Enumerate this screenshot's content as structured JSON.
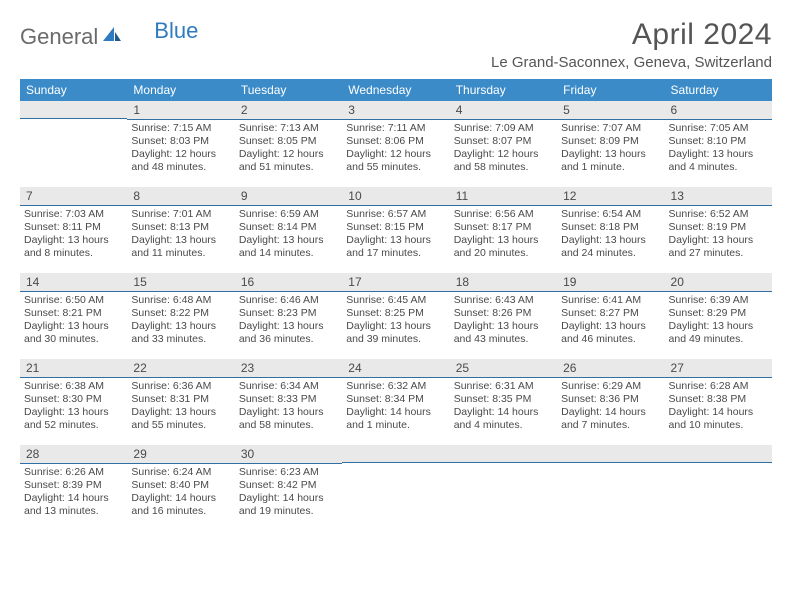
{
  "logo": {
    "text_a": "General",
    "text_b": "Blue"
  },
  "title": "April 2024",
  "location": "Le Grand-Saconnex, Geneva, Switzerland",
  "colors": {
    "header_bg": "#3b8bc9",
    "header_text": "#ffffff",
    "daynum_bg": "#e9e9e9",
    "daynum_border": "#2f6fa3",
    "body_text": "#4a4a4a",
    "logo_gray": "#6b6b6b",
    "logo_blue": "#2e7bbf",
    "page_bg": "#ffffff"
  },
  "day_names": [
    "Sunday",
    "Monday",
    "Tuesday",
    "Wednesday",
    "Thursday",
    "Friday",
    "Saturday"
  ],
  "weeks": [
    [
      {
        "n": "",
        "sr": "",
        "ss": "",
        "dl1": "",
        "dl2": ""
      },
      {
        "n": "1",
        "sr": "Sunrise: 7:15 AM",
        "ss": "Sunset: 8:03 PM",
        "dl1": "Daylight: 12 hours",
        "dl2": "and 48 minutes."
      },
      {
        "n": "2",
        "sr": "Sunrise: 7:13 AM",
        "ss": "Sunset: 8:05 PM",
        "dl1": "Daylight: 12 hours",
        "dl2": "and 51 minutes."
      },
      {
        "n": "3",
        "sr": "Sunrise: 7:11 AM",
        "ss": "Sunset: 8:06 PM",
        "dl1": "Daylight: 12 hours",
        "dl2": "and 55 minutes."
      },
      {
        "n": "4",
        "sr": "Sunrise: 7:09 AM",
        "ss": "Sunset: 8:07 PM",
        "dl1": "Daylight: 12 hours",
        "dl2": "and 58 minutes."
      },
      {
        "n": "5",
        "sr": "Sunrise: 7:07 AM",
        "ss": "Sunset: 8:09 PM",
        "dl1": "Daylight: 13 hours",
        "dl2": "and 1 minute."
      },
      {
        "n": "6",
        "sr": "Sunrise: 7:05 AM",
        "ss": "Sunset: 8:10 PM",
        "dl1": "Daylight: 13 hours",
        "dl2": "and 4 minutes."
      }
    ],
    [
      {
        "n": "7",
        "sr": "Sunrise: 7:03 AM",
        "ss": "Sunset: 8:11 PM",
        "dl1": "Daylight: 13 hours",
        "dl2": "and 8 minutes."
      },
      {
        "n": "8",
        "sr": "Sunrise: 7:01 AM",
        "ss": "Sunset: 8:13 PM",
        "dl1": "Daylight: 13 hours",
        "dl2": "and 11 minutes."
      },
      {
        "n": "9",
        "sr": "Sunrise: 6:59 AM",
        "ss": "Sunset: 8:14 PM",
        "dl1": "Daylight: 13 hours",
        "dl2": "and 14 minutes."
      },
      {
        "n": "10",
        "sr": "Sunrise: 6:57 AM",
        "ss": "Sunset: 8:15 PM",
        "dl1": "Daylight: 13 hours",
        "dl2": "and 17 minutes."
      },
      {
        "n": "11",
        "sr": "Sunrise: 6:56 AM",
        "ss": "Sunset: 8:17 PM",
        "dl1": "Daylight: 13 hours",
        "dl2": "and 20 minutes."
      },
      {
        "n": "12",
        "sr": "Sunrise: 6:54 AM",
        "ss": "Sunset: 8:18 PM",
        "dl1": "Daylight: 13 hours",
        "dl2": "and 24 minutes."
      },
      {
        "n": "13",
        "sr": "Sunrise: 6:52 AM",
        "ss": "Sunset: 8:19 PM",
        "dl1": "Daylight: 13 hours",
        "dl2": "and 27 minutes."
      }
    ],
    [
      {
        "n": "14",
        "sr": "Sunrise: 6:50 AM",
        "ss": "Sunset: 8:21 PM",
        "dl1": "Daylight: 13 hours",
        "dl2": "and 30 minutes."
      },
      {
        "n": "15",
        "sr": "Sunrise: 6:48 AM",
        "ss": "Sunset: 8:22 PM",
        "dl1": "Daylight: 13 hours",
        "dl2": "and 33 minutes."
      },
      {
        "n": "16",
        "sr": "Sunrise: 6:46 AM",
        "ss": "Sunset: 8:23 PM",
        "dl1": "Daylight: 13 hours",
        "dl2": "and 36 minutes."
      },
      {
        "n": "17",
        "sr": "Sunrise: 6:45 AM",
        "ss": "Sunset: 8:25 PM",
        "dl1": "Daylight: 13 hours",
        "dl2": "and 39 minutes."
      },
      {
        "n": "18",
        "sr": "Sunrise: 6:43 AM",
        "ss": "Sunset: 8:26 PM",
        "dl1": "Daylight: 13 hours",
        "dl2": "and 43 minutes."
      },
      {
        "n": "19",
        "sr": "Sunrise: 6:41 AM",
        "ss": "Sunset: 8:27 PM",
        "dl1": "Daylight: 13 hours",
        "dl2": "and 46 minutes."
      },
      {
        "n": "20",
        "sr": "Sunrise: 6:39 AM",
        "ss": "Sunset: 8:29 PM",
        "dl1": "Daylight: 13 hours",
        "dl2": "and 49 minutes."
      }
    ],
    [
      {
        "n": "21",
        "sr": "Sunrise: 6:38 AM",
        "ss": "Sunset: 8:30 PM",
        "dl1": "Daylight: 13 hours",
        "dl2": "and 52 minutes."
      },
      {
        "n": "22",
        "sr": "Sunrise: 6:36 AM",
        "ss": "Sunset: 8:31 PM",
        "dl1": "Daylight: 13 hours",
        "dl2": "and 55 minutes."
      },
      {
        "n": "23",
        "sr": "Sunrise: 6:34 AM",
        "ss": "Sunset: 8:33 PM",
        "dl1": "Daylight: 13 hours",
        "dl2": "and 58 minutes."
      },
      {
        "n": "24",
        "sr": "Sunrise: 6:32 AM",
        "ss": "Sunset: 8:34 PM",
        "dl1": "Daylight: 14 hours",
        "dl2": "and 1 minute."
      },
      {
        "n": "25",
        "sr": "Sunrise: 6:31 AM",
        "ss": "Sunset: 8:35 PM",
        "dl1": "Daylight: 14 hours",
        "dl2": "and 4 minutes."
      },
      {
        "n": "26",
        "sr": "Sunrise: 6:29 AM",
        "ss": "Sunset: 8:36 PM",
        "dl1": "Daylight: 14 hours",
        "dl2": "and 7 minutes."
      },
      {
        "n": "27",
        "sr": "Sunrise: 6:28 AM",
        "ss": "Sunset: 8:38 PM",
        "dl1": "Daylight: 14 hours",
        "dl2": "and 10 minutes."
      }
    ],
    [
      {
        "n": "28",
        "sr": "Sunrise: 6:26 AM",
        "ss": "Sunset: 8:39 PM",
        "dl1": "Daylight: 14 hours",
        "dl2": "and 13 minutes."
      },
      {
        "n": "29",
        "sr": "Sunrise: 6:24 AM",
        "ss": "Sunset: 8:40 PM",
        "dl1": "Daylight: 14 hours",
        "dl2": "and 16 minutes."
      },
      {
        "n": "30",
        "sr": "Sunrise: 6:23 AM",
        "ss": "Sunset: 8:42 PM",
        "dl1": "Daylight: 14 hours",
        "dl2": "and 19 minutes."
      },
      {
        "n": "",
        "sr": "",
        "ss": "",
        "dl1": "",
        "dl2": ""
      },
      {
        "n": "",
        "sr": "",
        "ss": "",
        "dl1": "",
        "dl2": ""
      },
      {
        "n": "",
        "sr": "",
        "ss": "",
        "dl1": "",
        "dl2": ""
      },
      {
        "n": "",
        "sr": "",
        "ss": "",
        "dl1": "",
        "dl2": ""
      }
    ]
  ]
}
